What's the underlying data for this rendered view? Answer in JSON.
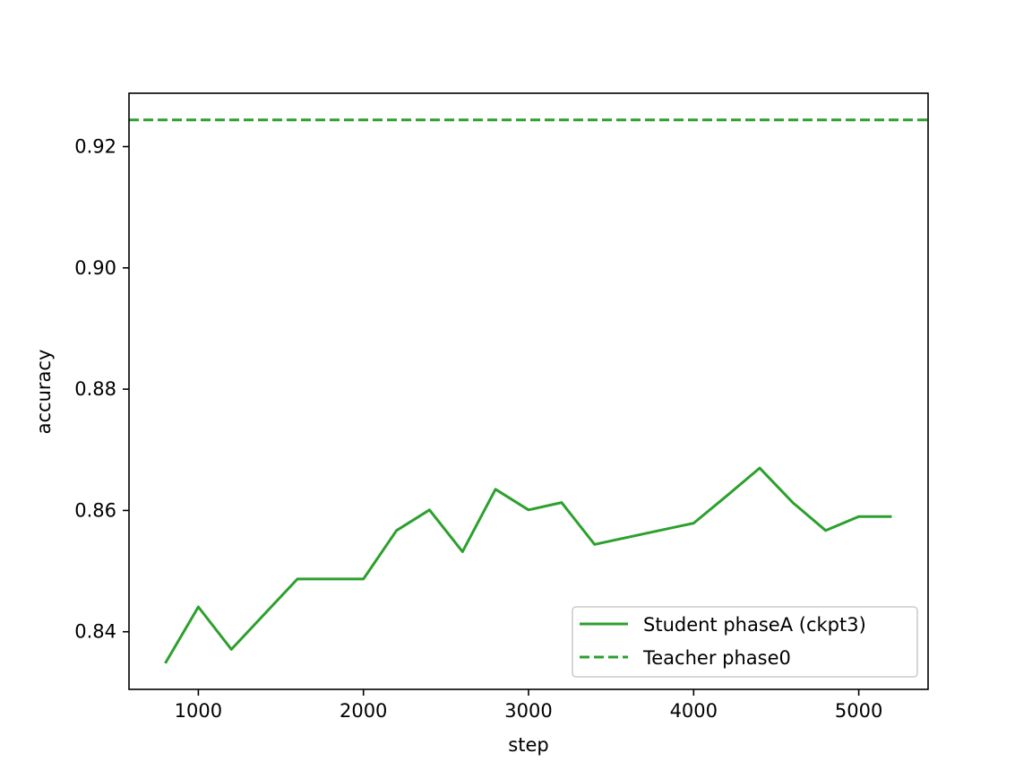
{
  "chart_data": {
    "type": "line",
    "title": "",
    "xlabel": "step",
    "ylabel": "accuracy",
    "xlim": [
      580,
      5420
    ],
    "ylim": [
      0.8305,
      0.9288
    ],
    "x_ticks": [
      1000,
      2000,
      3000,
      4000,
      5000
    ],
    "y_ticks": [
      0.84,
      0.86,
      0.88,
      0.9,
      0.92
    ],
    "x_tick_labels": [
      "1000",
      "2000",
      "3000",
      "4000",
      "5000"
    ],
    "y_tick_labels": [
      "0.84",
      "0.86",
      "0.88",
      "0.90",
      "0.92"
    ],
    "grid": false,
    "legend_position": "lower-right",
    "series": [
      {
        "name": "Student phaseA (ckpt3)",
        "style": "solid",
        "color": "#2ca02c",
        "x": [
          800,
          1000,
          1200,
          1400,
          1600,
          1800,
          2000,
          2200,
          2400,
          2600,
          2800,
          3000,
          3200,
          3400,
          4000,
          4200,
          4400,
          4600,
          4800,
          5000,
          5200
        ],
        "y": [
          0.8348,
          0.8441,
          0.8371,
          0.8429,
          0.8487,
          0.8487,
          0.8487,
          0.8567,
          0.8601,
          0.8532,
          0.8635,
          0.8601,
          0.8613,
          0.8544,
          0.8579,
          0.8624,
          0.867,
          0.8613,
          0.8567,
          0.859,
          0.859
        ]
      },
      {
        "name": "Teacher phase0",
        "style": "dashed",
        "color": "#2ca02c",
        "hline": 0.9244
      }
    ]
  }
}
